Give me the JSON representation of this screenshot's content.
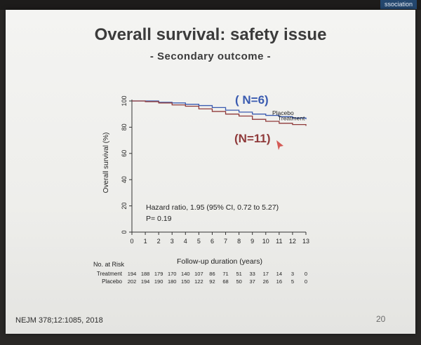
{
  "corner_label": "ssociation",
  "slide": {
    "title": "Overall survival: safety issue",
    "subtitle": "- Secondary outcome -",
    "citation": "NEJM 378;12:1085, 2018",
    "page_number": "20"
  },
  "chart_data": {
    "type": "line",
    "xlabel": "Follow-up duration (years)",
    "ylabel": "Overall survival (%)",
    "xlim": [
      0,
      13
    ],
    "ylim": [
      0,
      100
    ],
    "x_ticks": [
      0,
      1,
      2,
      3,
      4,
      5,
      6,
      7,
      8,
      9,
      10,
      11,
      12,
      13
    ],
    "y_ticks": [
      0,
      20,
      40,
      60,
      80,
      100
    ],
    "grid": false,
    "series": [
      {
        "name": "Placebo",
        "color": "#3a5bb0",
        "points": [
          [
            0,
            100
          ],
          [
            1,
            100
          ],
          [
            2,
            99
          ],
          [
            3,
            98.5
          ],
          [
            4,
            97.5
          ],
          [
            5,
            96.5
          ],
          [
            6,
            95
          ],
          [
            7,
            93
          ],
          [
            8,
            91.5
          ],
          [
            9,
            90
          ],
          [
            10,
            89
          ],
          [
            11,
            88
          ],
          [
            12,
            87
          ],
          [
            13,
            86
          ]
        ]
      },
      {
        "name": "Treatment",
        "color": "#8f3a3a",
        "points": [
          [
            0,
            100
          ],
          [
            1,
            99.5
          ],
          [
            2,
            98.5
          ],
          [
            3,
            97
          ],
          [
            4,
            96
          ],
          [
            5,
            94
          ],
          [
            6,
            92
          ],
          [
            7,
            90
          ],
          [
            8,
            88.5
          ],
          [
            9,
            86
          ],
          [
            10,
            84.5
          ],
          [
            11,
            83
          ],
          [
            12,
            82
          ],
          [
            13,
            81
          ]
        ]
      }
    ],
    "annotations": {
      "placebo_events": "( N=6)",
      "treatment_events": "(N=11)",
      "hazard_line1": "Hazard ratio, 1.95  (95% CI, 0.72 to 5.27)",
      "hazard_line2": "P= 0.19"
    },
    "risk_table": {
      "header": "No. at Risk",
      "rows": [
        {
          "label": "Treatment",
          "values": [
            "194",
            "188",
            "179",
            "170",
            "140",
            "107",
            "86",
            "71",
            "51",
            "33",
            "17",
            "14",
            "3",
            "0"
          ]
        },
        {
          "label": "Placebo",
          "values": [
            "202",
            "194",
            "190",
            "180",
            "150",
            "122",
            "92",
            "68",
            "50",
            "37",
            "26",
            "16",
            "5",
            "0"
          ]
        }
      ]
    }
  }
}
